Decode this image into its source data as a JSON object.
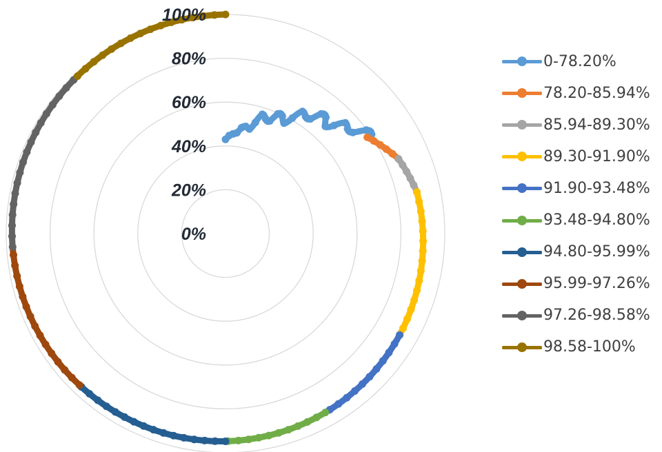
{
  "chart_data": {
    "type": "radar",
    "rlim": [
      0,
      1
    ],
    "tick_labels": [
      "0%",
      "20%",
      "40%",
      "60%",
      "80%",
      "100%"
    ],
    "grid": true,
    "legend_position": "right",
    "series": [
      {
        "name": "0-78.20%",
        "color": "#5b9bd5",
        "start": 0.0,
        "end": 0.155,
        "r_start": 0.43,
        "r_end": 0.782
      },
      {
        "name": "78.20-85.94%",
        "color": "#ed7d31",
        "start": 0.155,
        "end": 0.185,
        "r_start": 0.782,
        "r_end": 0.8594
      },
      {
        "name": "85.94-89.30%",
        "color": "#a5a5a5",
        "start": 0.185,
        "end": 0.216,
        "r_start": 0.8594,
        "r_end": 0.893
      },
      {
        "name": "89.30-91.90%",
        "color": "#ffc000",
        "start": 0.216,
        "end": 0.334,
        "r_start": 0.893,
        "r_end": 0.919
      },
      {
        "name": "91.90-93.48%",
        "color": "#4472c4",
        "start": 0.334,
        "end": 0.419,
        "r_start": 0.919,
        "r_end": 0.9348
      },
      {
        "name": "93.48-94.80%",
        "color": "#70ad47",
        "start": 0.419,
        "end": 0.5,
        "r_start": 0.9348,
        "r_end": 0.948
      },
      {
        "name": "94.80-95.99%",
        "color": "#255e91",
        "start": 0.5,
        "end": 0.622,
        "r_start": 0.948,
        "r_end": 0.9599
      },
      {
        "name": "95.99-97.26%",
        "color": "#9e480e",
        "start": 0.622,
        "end": 0.74,
        "r_start": 0.9599,
        "r_end": 0.9726
      },
      {
        "name": "97.26-98.58%",
        "color": "#636363",
        "start": 0.74,
        "end": 0.88,
        "r_start": 0.9726,
        "r_end": 0.9858
      },
      {
        "name": "98.58-100%",
        "color": "#997300",
        "start": 0.88,
        "end": 1.0,
        "r_start": 0.9858,
        "r_end": 1.0
      }
    ]
  }
}
